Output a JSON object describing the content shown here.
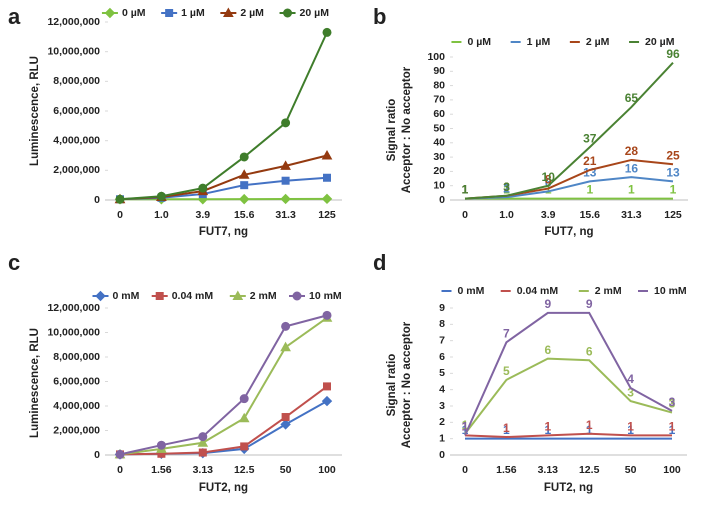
{
  "chart_data": [
    {
      "type": "line",
      "panel_label": "a",
      "legend_style": "marker",
      "categories": [
        "0",
        "1.0",
        "3.9",
        "15.6",
        "31.3",
        "125"
      ],
      "xlabel": "FUT7, ng",
      "ylabel": [
        "Luminescence, RLU"
      ],
      "ylim": [
        0,
        12000000
      ],
      "yticks": [
        0,
        {
          "value": 2000000,
          "label": "2,000,000"
        },
        {
          "value": 4000000,
          "label": "4,000,000"
        },
        {
          "value": 6000000,
          "label": "6,000,000"
        },
        {
          "value": 8000000,
          "label": "8,000,000"
        },
        {
          "value": 10000000,
          "label": "10,000,000"
        },
        {
          "value": 12000000,
          "label": "12,000,000"
        }
      ],
      "series": [
        {
          "name": "0 µM",
          "color": "#7fc241",
          "marker": "diamond",
          "values": [
            50000,
            50000,
            50000,
            60000,
            70000,
            80000
          ]
        },
        {
          "name": "1 µM",
          "color": "#4472c4",
          "marker": "square",
          "values": [
            50000,
            150000,
            400000,
            1000000,
            1300000,
            1500000
          ]
        },
        {
          "name": "2 µM",
          "color": "#943a10",
          "marker": "triangle",
          "values": [
            50000,
            200000,
            600000,
            1700000,
            2300000,
            3000000
          ]
        },
        {
          "name": "20 µM",
          "color": "#3f7d2b",
          "marker": "circle",
          "values": [
            50000,
            250000,
            800000,
            2900000,
            5200000,
            11300000
          ]
        }
      ]
    },
    {
      "type": "line",
      "panel_label": "b",
      "legend_style": "dash",
      "categories": [
        "0",
        "1.0",
        "3.9",
        "15.6",
        "31.3",
        "125"
      ],
      "xlabel": "FUT7, ng",
      "ylabel": [
        "Signal ratio",
        "Acceptor : No acceptor"
      ],
      "ylim": [
        0,
        100
      ],
      "yticks": [
        0,
        10,
        20,
        30,
        40,
        50,
        60,
        70,
        80,
        90,
        100
      ],
      "series": [
        {
          "name": "0 µM",
          "color": "#7fc241",
          "values": [
            1,
            1,
            1,
            1,
            1,
            1
          ]
        },
        {
          "name": "1 µM",
          "color": "#4f86c6",
          "values": [
            1,
            2,
            6,
            13,
            16,
            13
          ]
        },
        {
          "name": "2 µM",
          "color": "#a8461a",
          "values": [
            1,
            3,
            8,
            21,
            28,
            25
          ]
        },
        {
          "name": "20 µM",
          "color": "#4a8233",
          "values": [
            1,
            3,
            10,
            37,
            65,
            96
          ]
        }
      ]
    },
    {
      "type": "line",
      "panel_label": "c",
      "legend_style": "marker",
      "categories": [
        "0",
        "1.56",
        "3.13",
        "12.5",
        "50",
        "100"
      ],
      "xlabel": "FUT2, ng",
      "ylabel": [
        "Luminescence, RLU"
      ],
      "ylim": [
        0,
        12000000
      ],
      "yticks": [
        0,
        {
          "value": 2000000,
          "label": "2,000,000"
        },
        {
          "value": 4000000,
          "label": "4,000,000"
        },
        {
          "value": 6000000,
          "label": "6,000,000"
        },
        {
          "value": 8000000,
          "label": "8,000,000"
        },
        {
          "value": 10000000,
          "label": "10,000,000"
        },
        {
          "value": 12000000,
          "label": "12,000,000"
        }
      ],
      "series": [
        {
          "name": "0 mM",
          "color": "#4472c4",
          "marker": "diamond",
          "values": [
            50000,
            100000,
            150000,
            500000,
            2500000,
            4400000
          ]
        },
        {
          "name": "0.04 mM",
          "color": "#c0504d",
          "marker": "square",
          "values": [
            50000,
            100000,
            200000,
            700000,
            3100000,
            5600000
          ]
        },
        {
          "name": "2 mM",
          "color": "#9bbb59",
          "marker": "triangle",
          "values": [
            50000,
            500000,
            1000000,
            3000000,
            8800000,
            11200000
          ]
        },
        {
          "name": "10 mM",
          "color": "#8064a2",
          "marker": "circle",
          "values": [
            50000,
            800000,
            1500000,
            4600000,
            10500000,
            11400000
          ]
        }
      ]
    },
    {
      "type": "line",
      "panel_label": "d",
      "legend_style": "dash",
      "categories": [
        "0",
        "1.56",
        "3.13",
        "12.5",
        "50",
        "100"
      ],
      "xlabel": "FUT2, ng",
      "ylabel": [
        "Signal ratio",
        "Acceptor : No acceptor"
      ],
      "ylim": [
        0,
        9
      ],
      "yticks": [
        0,
        1,
        2,
        3,
        4,
        5,
        6,
        7,
        8,
        9
      ],
      "series": [
        {
          "name": "0 mM",
          "color": "#4472c4",
          "values": [
            1,
            1,
            1,
            1,
            1,
            1
          ],
          "value_labels": [
            "1",
            "1",
            "1",
            "1",
            "1",
            "1"
          ]
        },
        {
          "name": "0.04 mM",
          "color": "#c0504d",
          "values": [
            1.2,
            1.1,
            1.2,
            1.3,
            1.2,
            1.2
          ],
          "value_labels": [
            "1",
            "1",
            "1",
            "1",
            "1",
            "1"
          ]
        },
        {
          "name": "2 mM",
          "color": "#9bbb59",
          "values": [
            1.3,
            4.6,
            5.9,
            5.8,
            3.3,
            2.6
          ],
          "value_labels": [
            "1",
            "5",
            "6",
            "6",
            "3",
            "3"
          ]
        },
        {
          "name": "10 mM",
          "color": "#8064a2",
          "values": [
            1.2,
            6.9,
            8.7,
            8.7,
            4.1,
            2.7
          ],
          "value_labels": [
            "1",
            "7",
            "9",
            "9",
            "4",
            "3"
          ]
        }
      ]
    }
  ]
}
